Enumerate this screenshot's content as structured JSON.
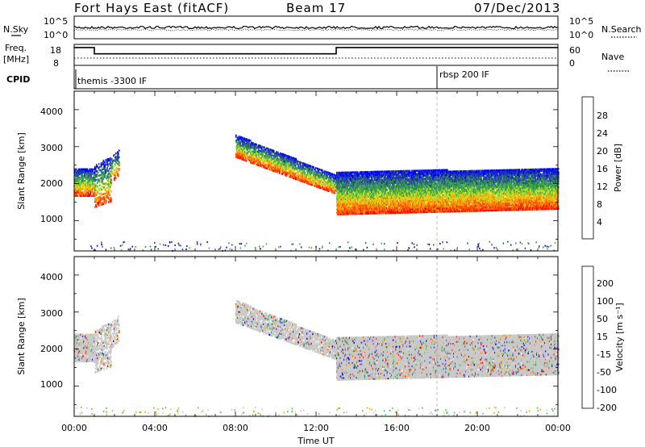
{
  "header": {
    "station": "Fort Hays East (fitACF)",
    "beam": "Beam 17",
    "date": "07/Dec/2013"
  },
  "noise_panel": {
    "left_label": "N.Sky",
    "right_label": "N.Search",
    "ytick_top": "10^5",
    "ytick_bottom": "10^0"
  },
  "freq_panel": {
    "left_label_line1": "Freq.",
    "left_label_line2": "[MHz]",
    "right_label": "Nave",
    "left_ticks": [
      "18",
      "8"
    ],
    "right_ticks": [
      "60",
      "0"
    ],
    "freq_steps": [
      {
        "from": 0.0,
        "to": 1.0,
        "value": 16.5
      },
      {
        "from": 1.0,
        "to": 13.0,
        "value": 13.5
      },
      {
        "from": 13.0,
        "to": 24.0,
        "value": 16.5
      }
    ],
    "nave_level": 18
  },
  "cpid_panel": {
    "label": "CPID",
    "segments": [
      {
        "start": 0.0,
        "text": "themis -3300 IF"
      },
      {
        "start": 18.0,
        "text": "rbsp 200 IF"
      }
    ]
  },
  "power_panel": {
    "ylabel": "Slant Range [km]",
    "yticks": [
      "1000",
      "2000",
      "3000",
      "4000"
    ],
    "colorbar_label": "Power [dB]",
    "colorbar_ticks": [
      "4",
      "8",
      "12",
      "16",
      "20",
      "24",
      "28"
    ]
  },
  "velocity_panel": {
    "ylabel": "Slant Range [km]",
    "yticks": [
      "1000",
      "2000",
      "3000",
      "4000"
    ],
    "colorbar_label": "Velocity [m s⁻¹]",
    "colorbar_ticks": [
      "200",
      "100",
      "50",
      "15",
      "-15",
      "-50",
      "-100",
      "-200"
    ]
  },
  "xaxis": {
    "label": "Time UT",
    "ticks": [
      "00:00",
      "04:00",
      "08:00",
      "12:00",
      "16:00",
      "20:00",
      "00:00"
    ]
  },
  "chart_data": {
    "type": "heatmap",
    "x_range_hours": [
      0,
      24
    ],
    "y_range_km": [
      180,
      4500
    ],
    "power_colors": [
      "#0000ff",
      "#2040a0",
      "#308060",
      "#40b040",
      "#c8dc20",
      "#ffa000",
      "#ff5000",
      "#ff0000"
    ],
    "velocity_colors": [
      "#0000ff",
      "#2a4aa0",
      "#2c8c5a",
      "#50c850",
      "#c8c8c8",
      "#ffa000",
      "#ff6000",
      "#ff0000"
    ],
    "echo_bands": [
      {
        "name": "early",
        "t": [
          0.0,
          1.0
        ],
        "r_low": [
          1650,
          1650
        ],
        "r_high": [
          2400,
          2400
        ],
        "level": 0.8
      },
      {
        "name": "early2",
        "t": [
          1.0,
          1.8
        ],
        "r_low": [
          1350,
          1500
        ],
        "r_high": [
          2500,
          2700
        ],
        "level": 0.5
      },
      {
        "name": "early3",
        "t": [
          1.8,
          2.2
        ],
        "r_low": [
          2000,
          2200
        ],
        "r_high": [
          2700,
          2900
        ],
        "level": 0.5
      },
      {
        "name": "arc",
        "t": [
          8.0,
          13.0
        ],
        "r_low": [
          2700,
          1700
        ],
        "r_high": [
          3300,
          2200
        ],
        "level": 0.7
      },
      {
        "name": "main",
        "t": [
          13.0,
          24.0
        ],
        "r_low": [
          1150,
          1300
        ],
        "r_high": [
          2300,
          2400
        ],
        "level": 0.9
      }
    ]
  }
}
